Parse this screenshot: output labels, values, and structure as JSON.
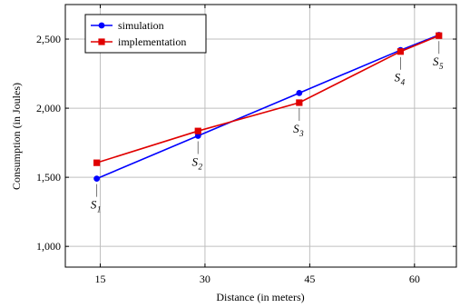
{
  "chart_data": {
    "type": "line",
    "xlabel": "Distance (in meters)",
    "ylabel": "Consumption (in Joules)",
    "xlim": [
      10,
      66
    ],
    "ylim": [
      850,
      2750
    ],
    "xticks": [
      15,
      30,
      45,
      60
    ],
    "yticks": [
      1000,
      1500,
      2000,
      2500
    ],
    "xtick_labels": [
      "15",
      "30",
      "45",
      "60"
    ],
    "ytick_labels": [
      "1,000",
      "1,500",
      "2,000",
      "2,500"
    ],
    "grid": true,
    "legend_position": "top-left",
    "series": [
      {
        "name": "simulation",
        "color": "#0000ff",
        "marker": "circle",
        "x": [
          14.5,
          29,
          43.5,
          58,
          63.5
        ],
        "y": [
          1490,
          1800,
          2110,
          2420,
          2530
        ]
      },
      {
        "name": "implementation",
        "color": "#e00000",
        "marker": "square",
        "x": [
          14.5,
          29,
          43.5,
          58,
          63.5
        ],
        "y": [
          1605,
          1835,
          2040,
          2410,
          2525
        ]
      }
    ],
    "annotations": [
      {
        "base": "S",
        "sub": "1",
        "x": 14.5,
        "y": 1490,
        "side": "below"
      },
      {
        "base": "S",
        "sub": "2",
        "x": 29,
        "y": 1800,
        "side": "below"
      },
      {
        "base": "S",
        "sub": "3",
        "x": 43.5,
        "y": 2040,
        "side": "below"
      },
      {
        "base": "S",
        "sub": "4",
        "x": 58,
        "y": 2410,
        "side": "below"
      },
      {
        "base": "S",
        "sub": "5",
        "x": 63.5,
        "y": 2525,
        "side": "below"
      }
    ]
  }
}
